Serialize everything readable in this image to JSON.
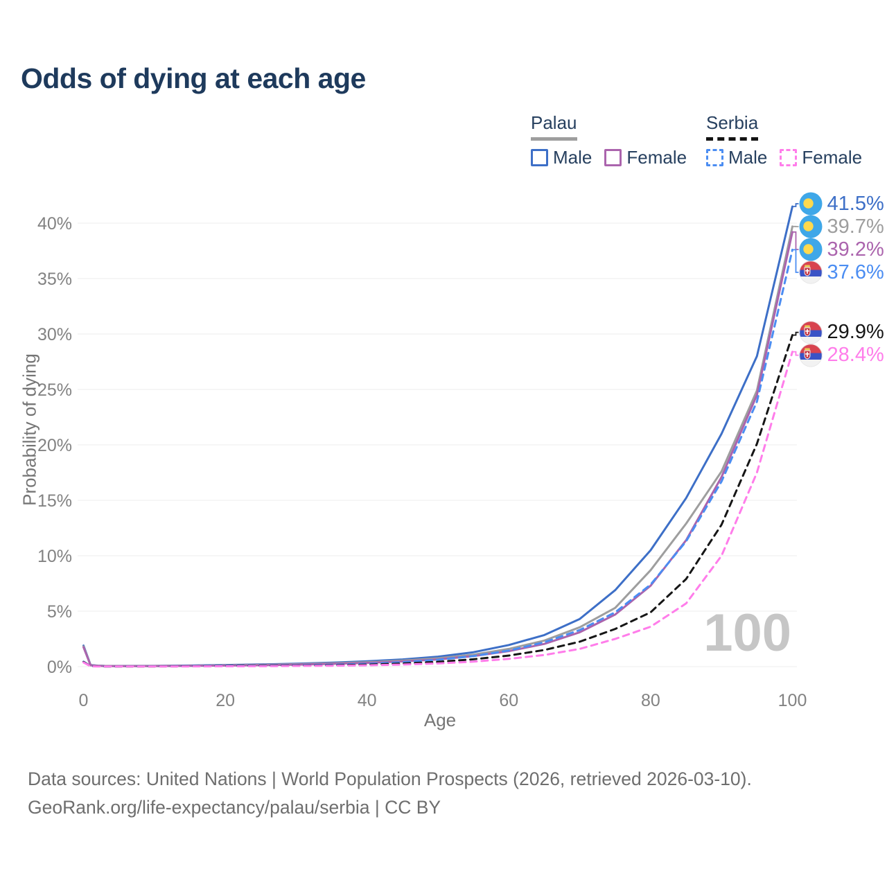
{
  "header": {
    "title": "Odds of dying at each age"
  },
  "legend": {
    "palau": {
      "label": "Palau",
      "male": "Male",
      "female": "Female"
    },
    "serbia": {
      "label": "Serbia",
      "male": "Male",
      "female": "Female"
    }
  },
  "axes": {
    "x": {
      "title": "Age",
      "ticks": [
        0,
        20,
        40,
        60,
        80,
        100
      ],
      "range": [
        0,
        100
      ]
    },
    "y": {
      "title": "Probability of dying",
      "tick_labels": [
        "0%",
        "5%",
        "10%",
        "15%",
        "20%",
        "25%",
        "30%",
        "35%",
        "40%"
      ],
      "tick_values": [
        0,
        5,
        10,
        15,
        20,
        25,
        30,
        35,
        40
      ],
      "range_pct": [
        0,
        43
      ]
    }
  },
  "watermark": "100",
  "chart_data": {
    "type": "line",
    "xlabel": "Age",
    "ylabel": "Probability of dying",
    "x_ages": [
      0,
      1,
      2,
      3,
      5,
      10,
      15,
      20,
      25,
      30,
      35,
      40,
      45,
      50,
      55,
      60,
      65,
      70,
      75,
      80,
      85,
      90,
      95,
      100
    ],
    "grid": true,
    "legend_position": "top-right",
    "series": [
      {
        "name": "Palau male",
        "country": "Palau",
        "flag": "palau",
        "color": "#3d6fc7",
        "dash": "solid",
        "end_label": "41.5%",
        "values": [
          1.9,
          0.15,
          0.09,
          0.07,
          0.06,
          0.07,
          0.1,
          0.15,
          0.2,
          0.27,
          0.36,
          0.48,
          0.65,
          0.9,
          1.3,
          1.95,
          2.85,
          4.3,
          6.9,
          10.5,
          15.2,
          21.0,
          28.0,
          41.5
        ]
      },
      {
        "name": "Palau both sexes",
        "country": "Palau",
        "flag": "palau",
        "color": "#9e9e9e",
        "dash": "solid",
        "end_label": "39.7%",
        "values": [
          1.82,
          0.13,
          0.08,
          0.06,
          0.05,
          0.06,
          0.08,
          0.12,
          0.16,
          0.22,
          0.3,
          0.4,
          0.55,
          0.75,
          1.08,
          1.6,
          2.35,
          3.55,
          5.3,
          8.7,
          12.9,
          17.6,
          24.9,
          39.7
        ]
      },
      {
        "name": "Palau female",
        "country": "Palau",
        "flag": "palau",
        "color": "#ab64ad",
        "dash": "solid",
        "end_label": "39.2%",
        "values": [
          1.75,
          0.12,
          0.07,
          0.05,
          0.05,
          0.05,
          0.07,
          0.1,
          0.13,
          0.18,
          0.25,
          0.34,
          0.47,
          0.65,
          0.95,
          1.4,
          2.05,
          3.1,
          4.7,
          7.3,
          11.4,
          17.1,
          24.5,
          39.2
        ]
      },
      {
        "name": "Serbia male",
        "country": "Serbia",
        "flag": "serbia",
        "color": "#4b8df2",
        "dash": "dashed",
        "end_label": "37.6%",
        "values": [
          0.45,
          0.04,
          0.03,
          0.02,
          0.02,
          0.03,
          0.05,
          0.08,
          0.1,
          0.12,
          0.17,
          0.25,
          0.4,
          0.62,
          0.95,
          1.45,
          2.2,
          3.3,
          4.9,
          7.4,
          11.3,
          16.7,
          23.9,
          37.6
        ]
      },
      {
        "name": "Serbia both sexes",
        "country": "Serbia",
        "flag": "serbia",
        "color": "#161616",
        "dash": "dashed",
        "end_label": "29.9%",
        "values": [
          0.42,
          0.035,
          0.03,
          0.02,
          0.02,
          0.02,
          0.03,
          0.05,
          0.07,
          0.09,
          0.12,
          0.18,
          0.28,
          0.43,
          0.66,
          1.0,
          1.5,
          2.25,
          3.4,
          4.9,
          7.9,
          12.8,
          20.1,
          29.9
        ]
      },
      {
        "name": "Serbia female",
        "country": "Serbia",
        "flag": "serbia",
        "color": "#ff7dea",
        "dash": "dashed",
        "end_label": "28.4%",
        "values": [
          0.38,
          0.03,
          0.02,
          0.015,
          0.01,
          0.02,
          0.02,
          0.03,
          0.04,
          0.06,
          0.08,
          0.12,
          0.19,
          0.29,
          0.45,
          0.7,
          1.05,
          1.6,
          2.5,
          3.6,
          5.7,
          10.0,
          17.5,
          28.4
        ]
      }
    ]
  },
  "footer": {
    "line1": "Data sources: United Nations | World Population Prospects (2026, retrieved 2026-03-10).",
    "line2": "GeoRank.org/life-expectancy/palau/serbia | CC BY"
  }
}
